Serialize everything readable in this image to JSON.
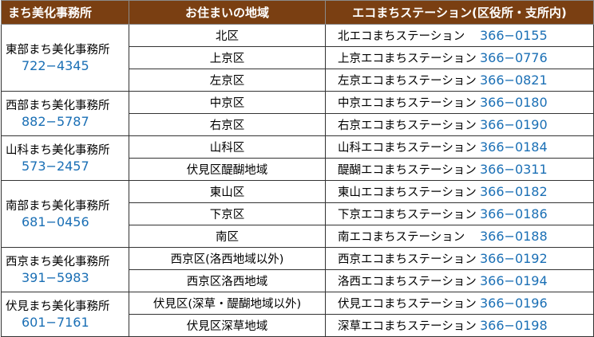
{
  "headers": {
    "office": "まち美化事務所",
    "area": "お住まいの地域",
    "station": "エコまちステーション(区役所・支所内)"
  },
  "offices": [
    {
      "name": "東部まち美化事務所",
      "phone": "722−4345",
      "rows": [
        {
          "area": "北区",
          "station": "北エコまちステーション",
          "phone": "366−0155"
        },
        {
          "area": "上京区",
          "station": "上京エコまちステーション",
          "phone": "366−0776"
        },
        {
          "area": "左京区",
          "station": "左京エコまちステーション",
          "phone": "366−0821"
        }
      ]
    },
    {
      "name": "西部まち美化事務所",
      "phone": "882−5787",
      "rows": [
        {
          "area": "中京区",
          "station": "中京エコまちステーション",
          "phone": "366−0180"
        },
        {
          "area": "右京区",
          "station": "右京エコまちステーション",
          "phone": "366−0190"
        }
      ]
    },
    {
      "name": "山科まち美化事務所",
      "phone": "573−2457",
      "rows": [
        {
          "area": "山科区",
          "station": "山科エコまちステーション",
          "phone": "366−0184"
        },
        {
          "area": "伏見区醍醐地域",
          "station": "醍醐エコまちステーション",
          "phone": "366−0311"
        }
      ]
    },
    {
      "name": "南部まち美化事務所",
      "phone": "681−0456",
      "rows": [
        {
          "area": "東山区",
          "station": "東山エコまちステーション",
          "phone": "366−0182"
        },
        {
          "area": "下京区",
          "station": "下京エコまちステーション",
          "phone": "366−0186"
        },
        {
          "area": "南区",
          "station": "南エコまちステーション",
          "phone": "366−0188"
        }
      ]
    },
    {
      "name": "西京まち美化事務所",
      "phone": "391−5983",
      "rows": [
        {
          "area": "西京区(洛西地域以外)",
          "station": "西京エコまちステーション",
          "phone": "366−0192"
        },
        {
          "area": "西京区洛西地域",
          "station": "洛西エコまちステーション",
          "phone": "366−0194"
        }
      ]
    },
    {
      "name": "伏見まち美化事務所",
      "phone": "601−7161",
      "rows": [
        {
          "area": "伏見区(深草・醍醐地域以外)",
          "station": "伏見エコまちステーション",
          "phone": "366−0196"
        },
        {
          "area": "伏見区深草地域",
          "station": "深草エコまちステーション",
          "phone": "366−0198"
        }
      ]
    }
  ]
}
